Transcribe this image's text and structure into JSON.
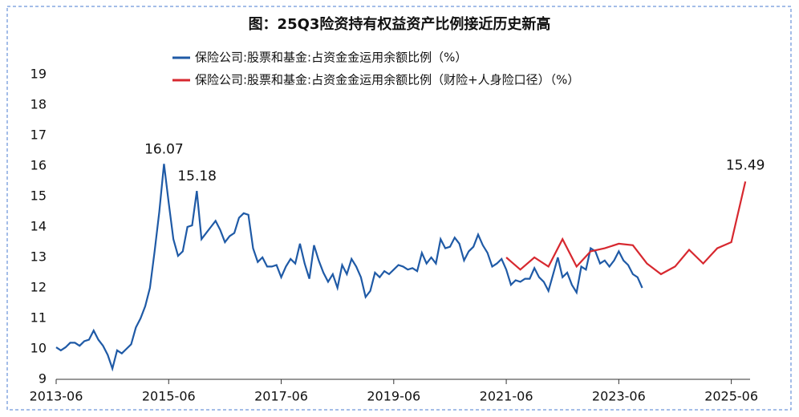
{
  "chart_data": {
    "type": "line",
    "title": "图：25Q3险资持有权益资产比例接近历史新高",
    "series": [
      {
        "name": "保险公司:股票和基金:占资金金运用余额比例（%）",
        "color": "#1f5aa6",
        "x": [
          "2013-06",
          "2013-07",
          "2013-08",
          "2013-09",
          "2013-10",
          "2013-11",
          "2013-12",
          "2014-01",
          "2014-02",
          "2014-03",
          "2014-04",
          "2014-05",
          "2014-06",
          "2014-07",
          "2014-08",
          "2014-09",
          "2014-10",
          "2014-11",
          "2014-12",
          "2015-01",
          "2015-02",
          "2015-03",
          "2015-04",
          "2015-05",
          "2015-06",
          "2015-07",
          "2015-08",
          "2015-09",
          "2015-10",
          "2015-11",
          "2015-12",
          "2016-01",
          "2016-02",
          "2016-03",
          "2016-04",
          "2016-05",
          "2016-06",
          "2016-07",
          "2016-08",
          "2016-09",
          "2016-10",
          "2016-11",
          "2016-12",
          "2017-01",
          "2017-02",
          "2017-03",
          "2017-04",
          "2017-05",
          "2017-06",
          "2017-07",
          "2017-08",
          "2017-09",
          "2017-10",
          "2017-11",
          "2017-12",
          "2018-01",
          "2018-02",
          "2018-03",
          "2018-04",
          "2018-05",
          "2018-06",
          "2018-07",
          "2018-08",
          "2018-09",
          "2018-10",
          "2018-11",
          "2018-12",
          "2019-01",
          "2019-02",
          "2019-03",
          "2019-04",
          "2019-05",
          "2019-06",
          "2019-07",
          "2019-08",
          "2019-09",
          "2019-10",
          "2019-11",
          "2019-12",
          "2020-01",
          "2020-02",
          "2020-03",
          "2020-04",
          "2020-05",
          "2020-06",
          "2020-07",
          "2020-08",
          "2020-09",
          "2020-10",
          "2020-11",
          "2020-12",
          "2021-01",
          "2021-02",
          "2021-03",
          "2021-04",
          "2021-05",
          "2021-06",
          "2021-07",
          "2021-08",
          "2021-09",
          "2021-10",
          "2021-11",
          "2021-12",
          "2022-01",
          "2022-02",
          "2022-03",
          "2022-04",
          "2022-05",
          "2022-06",
          "2022-07",
          "2022-08",
          "2022-09",
          "2022-10",
          "2022-11",
          "2022-12",
          "2023-01",
          "2023-02",
          "2023-03",
          "2023-04",
          "2023-05",
          "2023-06",
          "2023-07",
          "2023-08",
          "2023-09",
          "2023-10",
          "2023-11"
        ],
        "values": [
          10.05,
          9.95,
          10.05,
          10.2,
          10.2,
          10.1,
          10.25,
          10.3,
          10.6,
          10.3,
          10.1,
          9.8,
          9.35,
          9.95,
          9.85,
          10.0,
          10.15,
          10.7,
          11.0,
          11.4,
          12.0,
          13.2,
          14.5,
          16.07,
          14.8,
          13.6,
          13.05,
          13.2,
          14.0,
          14.05,
          15.18,
          13.6,
          13.8,
          14.0,
          14.2,
          13.9,
          13.5,
          13.7,
          13.8,
          14.3,
          14.45,
          14.4,
          13.3,
          12.85,
          13.0,
          12.7,
          12.7,
          12.75,
          12.35,
          12.7,
          12.95,
          12.8,
          13.45,
          12.8,
          12.3,
          13.4,
          12.9,
          12.5,
          12.2,
          12.45,
          12.0,
          12.75,
          12.45,
          12.95,
          12.7,
          12.35,
          11.7,
          11.9,
          12.5,
          12.35,
          12.55,
          12.45,
          12.6,
          12.75,
          12.7,
          12.6,
          12.65,
          12.55,
          13.15,
          12.8,
          13.0,
          12.8,
          13.6,
          13.3,
          13.35,
          13.65,
          13.45,
          12.9,
          13.2,
          13.35,
          13.75,
          13.4,
          13.15,
          12.7,
          12.8,
          12.95,
          12.6,
          12.1,
          12.25,
          12.2,
          12.3,
          12.3,
          12.65,
          12.35,
          12.2,
          11.9,
          12.45,
          13.0,
          12.35,
          12.5,
          12.1,
          11.85,
          12.7,
          12.6,
          13.3,
          13.2,
          12.8,
          12.9,
          12.7,
          12.9,
          13.2,
          12.9,
          12.75,
          12.45,
          12.35,
          12.0
        ]
      },
      {
        "name": "保险公司:股票和基金:占资金金运用余额比例（财险+人身险口径）（%）",
        "color": "#d7282f",
        "x": [
          "2021-06",
          "2021-09",
          "2021-12",
          "2022-03",
          "2022-06",
          "2022-09",
          "2022-12",
          "2023-03",
          "2023-06",
          "2023-09",
          "2023-12",
          "2024-03",
          "2024-06",
          "2024-09",
          "2024-12",
          "2025-03",
          "2025-06",
          "2025-09"
        ],
        "values": [
          13.0,
          12.6,
          13.0,
          12.7,
          13.6,
          12.7,
          13.2,
          13.3,
          13.45,
          13.4,
          12.8,
          12.45,
          12.7,
          13.25,
          12.8,
          13.3,
          13.5,
          15.49
        ]
      }
    ],
    "xlim": [
      "2013-06",
      "2025-10"
    ],
    "xticks": [
      "2013-06",
      "2015-06",
      "2017-06",
      "2019-06",
      "2021-06",
      "2023-06",
      "2025-06"
    ],
    "ylim": [
      9,
      19
    ],
    "yticks": [
      9,
      10,
      11,
      12,
      13,
      14,
      15,
      16,
      17,
      18,
      19
    ]
  }
}
